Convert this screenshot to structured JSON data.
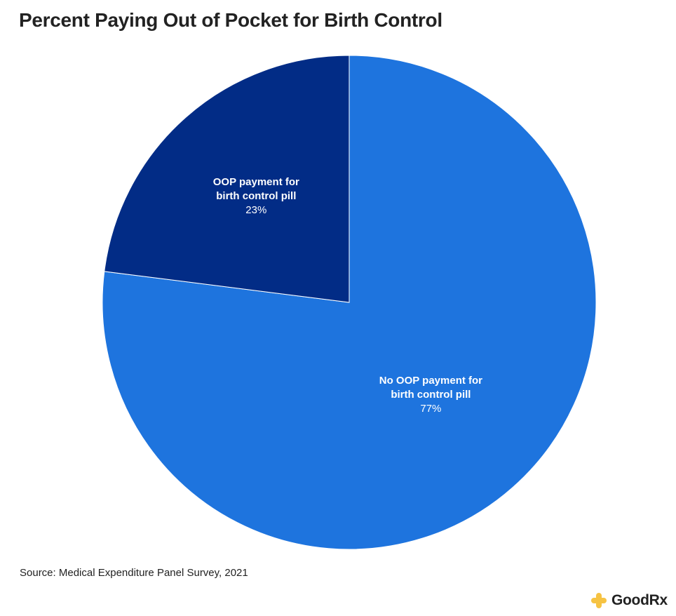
{
  "title": "Percent Paying Out of Pocket for Birth Control",
  "source": "Source: Medical Expenditure Panel Survey, 2021",
  "brand": {
    "name": "GoodRx",
    "icon": "goodrx-plus-icon",
    "icon_color": "#f6c343"
  },
  "chart_data": {
    "type": "pie",
    "title": "Percent Paying Out of Pocket for Birth Control",
    "start": "12 o'clock",
    "direction": "clockwise",
    "slices": [
      {
        "label_line1": "No OOP payment for",
        "label_line2": "birth control pill",
        "value": 77,
        "value_label": "77%",
        "color": "#1e74de"
      },
      {
        "label_line1": "OOP payment for",
        "label_line2": "birth control pill",
        "value": 23,
        "value_label": "23%",
        "color": "#022c86"
      }
    ]
  }
}
